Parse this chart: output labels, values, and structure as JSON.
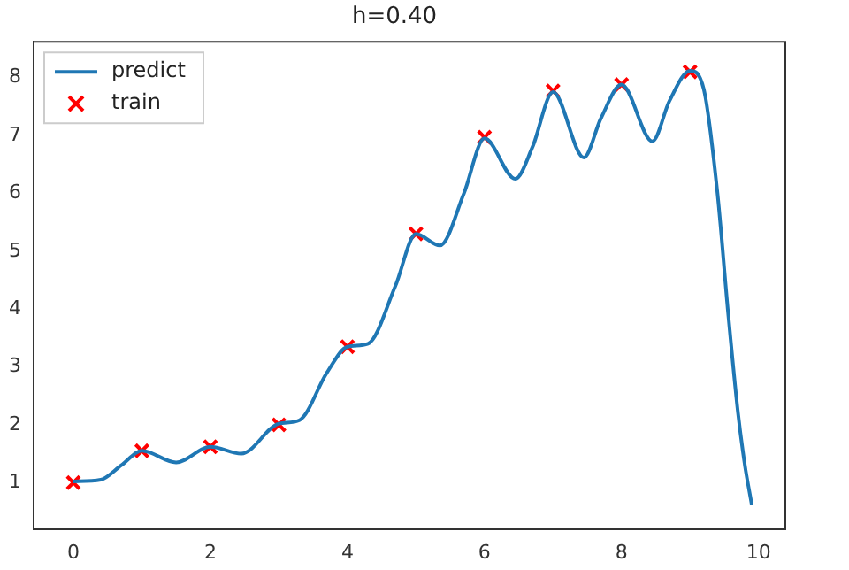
{
  "chart_data": {
    "type": "line",
    "title": "h=0.40",
    "xlim": [
      -0.58,
      10.39
    ],
    "xticks": [
      0,
      2,
      4,
      6,
      8,
      10
    ],
    "ylim": [
      0.2,
      8.62
    ],
    "yticks": [
      1,
      2,
      3,
      4,
      5,
      6,
      7,
      8
    ],
    "grid": false,
    "legend": "top left",
    "series": [
      {
        "name": "predict",
        "type": "line",
        "color": "#1f77b4",
        "marker": "none",
        "line_style": "solid",
        "x": [
          0,
          0.4,
          0.7,
          1,
          1.5,
          2,
          2.45,
          3,
          3.3,
          3.7,
          4,
          4.3,
          4.7,
          5,
          5.35,
          5.7,
          6,
          6.45,
          6.7,
          7,
          7.45,
          7.7,
          8,
          8.45,
          8.7,
          9,
          9.2,
          9.4,
          9.55,
          9.7,
          9.8,
          9.9
        ],
        "values": [
          1.02,
          1.05,
          1.3,
          1.55,
          1.35,
          1.62,
          1.5,
          2.02,
          2.08,
          2.9,
          3.35,
          3.4,
          4.4,
          5.3,
          5.1,
          6.0,
          6.95,
          6.25,
          6.8,
          7.75,
          6.62,
          7.3,
          7.88,
          6.9,
          7.6,
          8.12,
          7.8,
          6.0,
          4.0,
          2.2,
          1.3,
          0.62
        ]
      },
      {
        "name": "train",
        "type": "scatter",
        "color": "#ff0000",
        "marker": "cross",
        "x": [
          0,
          1,
          2,
          3,
          4,
          5,
          6,
          7,
          8,
          9
        ],
        "values": [
          1.0,
          1.55,
          1.62,
          2.0,
          3.35,
          5.3,
          6.97,
          7.77,
          7.88,
          8.1
        ]
      }
    ]
  }
}
